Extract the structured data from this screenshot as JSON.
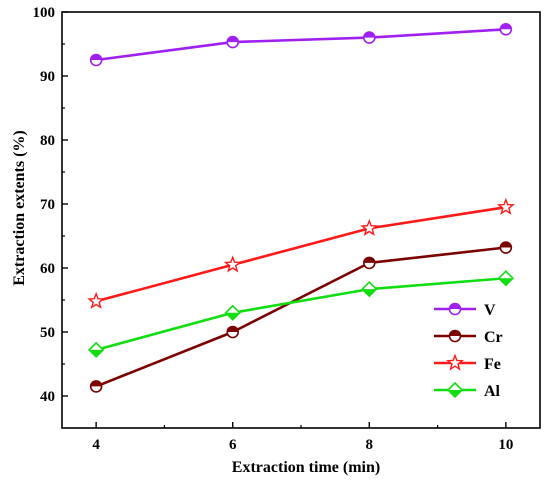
{
  "chart_data": {
    "type": "line",
    "title": "",
    "xlabel": "Extraction time (min)",
    "ylabel": "Extraction extents (%)",
    "x": [
      4,
      6,
      8,
      10
    ],
    "xticks": [
      "4",
      "6",
      "8",
      "10"
    ],
    "xlim": [
      3.5,
      10.5
    ],
    "ylim": [
      35,
      100
    ],
    "yticks": [
      "40",
      "50",
      "60",
      "70",
      "80",
      "90",
      "100"
    ],
    "grid": false,
    "legend_position": "bottom-right",
    "series": [
      {
        "name": "V",
        "values": [
          92.5,
          95.3,
          96.0,
          97.3
        ],
        "color": "#a020f0",
        "marker": "circle"
      },
      {
        "name": "Cr",
        "values": [
          41.5,
          50.0,
          60.8,
          63.2
        ],
        "color": "#7b0000",
        "marker": "circle"
      },
      {
        "name": "Fe",
        "values": [
          54.8,
          60.5,
          66.2,
          69.5
        ],
        "color": "#ff1a1a",
        "marker": "star"
      },
      {
        "name": "Al",
        "values": [
          47.2,
          53.0,
          56.7,
          58.4
        ],
        "color": "#11dd11",
        "marker": "diamond"
      }
    ]
  }
}
